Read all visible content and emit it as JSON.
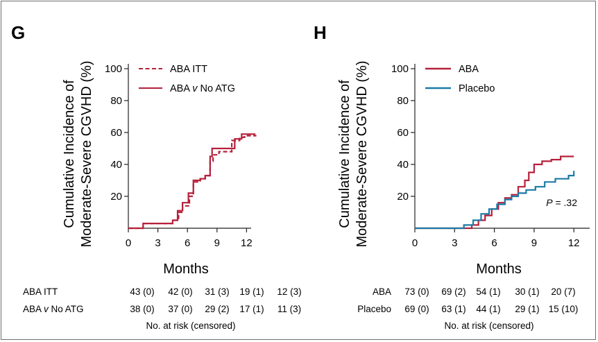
{
  "chart_data": [
    {
      "panel_label": "G",
      "type": "line",
      "step": true,
      "ylabel_line1": "Cumulative Incidence of",
      "ylabel_line2": "Moderate-Severe CGVHD (%)",
      "xlabel": "Months",
      "xlim": [
        0,
        13
      ],
      "ylim": [
        0,
        105
      ],
      "x_ticks": [
        "0",
        "3",
        "6",
        "9",
        "12"
      ],
      "y_ticks": [
        "20",
        "40",
        "60",
        "80",
        "100"
      ],
      "legend_position": "top-left",
      "series": [
        {
          "name": "ABA ITT",
          "name_parts": [
            "ABA ITT",
            ""
          ],
          "style": "dashed",
          "color": "#b5203b",
          "x": [
            0,
            1.5,
            4.5,
            5.1,
            5.5,
            6.2,
            6.6,
            7.3,
            7.8,
            8.3,
            8.6,
            9.2,
            10.5,
            11.3,
            11.8,
            13.0
          ],
          "y": [
            0,
            3,
            5,
            10,
            14,
            20,
            29,
            31,
            33,
            42,
            46,
            48,
            55,
            57,
            58,
            58
          ]
        },
        {
          "name": "ABA v No ATG",
          "name_parts": [
            "ABA ",
            "v",
            " No ATG"
          ],
          "style": "solid",
          "color": "#b5203b",
          "x": [
            0,
            1.5,
            4.5,
            5.0,
            5.5,
            6.1,
            6.6,
            7.3,
            7.8,
            8.3,
            8.5,
            10.1,
            10.8,
            11.5,
            12.9
          ],
          "y": [
            0,
            3,
            5,
            11,
            16,
            22,
            30,
            31,
            33,
            45,
            50,
            50,
            56,
            59,
            59
          ]
        }
      ],
      "risk_table": {
        "rows": [
          {
            "label_parts": [
              "ABA ITT",
              ""
            ],
            "values": [
              "43 (0)",
              "42 (0)",
              "31 (3)",
              "19 (1)",
              "12 (3)"
            ]
          },
          {
            "label_parts": [
              "ABA ",
              "v",
              " No ATG"
            ],
            "values": [
              "38 (0)",
              "37 (0)",
              "29 (2)",
              "17 (1)",
              "11 (3)"
            ]
          }
        ],
        "footer": "No. at risk (censored)"
      }
    },
    {
      "panel_label": "H",
      "type": "line",
      "step": true,
      "ylabel_line1": "Cumulative Incidence of",
      "ylabel_line2": "Moderate-Severe CGVHD (%)",
      "xlabel": "Months",
      "xlim": [
        0,
        13
      ],
      "ylim": [
        0,
        105
      ],
      "x_ticks": [
        "0",
        "3",
        "6",
        "9",
        "12"
      ],
      "y_ticks": [
        "20",
        "40",
        "60",
        "80",
        "100"
      ],
      "legend_position": "top-left",
      "annotation_p": "P",
      "annotation_val": " = .32",
      "series": [
        {
          "name": "ABA",
          "style": "solid",
          "color": "#b5203b",
          "x": [
            0,
            3.5,
            4.3,
            4.8,
            5.3,
            5.8,
            6.3,
            6.8,
            7.3,
            7.8,
            8.3,
            8.6,
            9.0,
            9.6,
            10.3,
            11.0,
            12.0
          ],
          "y": [
            0,
            0,
            2,
            5,
            8,
            12,
            16,
            19,
            21,
            26,
            30,
            35,
            40,
            42,
            43,
            45,
            45
          ]
        },
        {
          "name": "Placebo",
          "style": "solid",
          "color": "#1c7aa6",
          "x": [
            0,
            3.0,
            3.7,
            4.4,
            5.0,
            5.6,
            6.2,
            6.8,
            7.3,
            7.8,
            8.4,
            9.1,
            9.8,
            10.6,
            11.6,
            12.0
          ],
          "y": [
            0,
            0,
            2,
            5,
            9,
            12,
            15,
            18,
            20,
            22,
            24,
            26,
            29,
            31,
            33,
            36
          ]
        }
      ],
      "risk_table": {
        "rows": [
          {
            "label": "ABA",
            "values": [
              "73 (0)",
              "69 (2)",
              "54 (1)",
              "30 (1)",
              "20 (7)"
            ]
          },
          {
            "label": "Placebo",
            "values": [
              "69 (0)",
              "63 (1)",
              "44 (1)",
              "29 (1)",
              "15 (10)"
            ]
          }
        ],
        "footer": "No. at risk (censored)"
      }
    }
  ]
}
